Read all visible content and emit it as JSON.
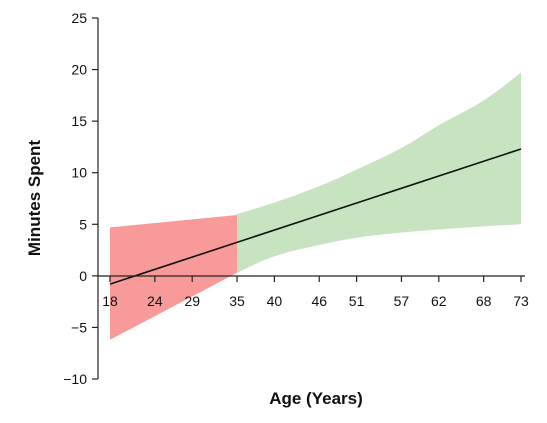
{
  "chart_data": {
    "type": "line",
    "xlabel": "Age (Years)",
    "ylabel": "Minutes Spent",
    "xlim": [
      18,
      73
    ],
    "ylim": [
      -10,
      25
    ],
    "x_ticks": [
      "18",
      "24",
      "29",
      "35",
      "40",
      "46",
      "51",
      "57",
      "62",
      "68",
      "73"
    ],
    "y_ticks": [
      "−10",
      "−5",
      "0",
      "5",
      "10",
      "15",
      "20",
      "25"
    ],
    "x_tick_values": [
      18,
      24,
      29,
      35,
      40,
      46,
      51,
      57,
      62,
      68,
      73
    ],
    "y_tick_values": [
      -10,
      -5,
      0,
      5,
      10,
      15,
      20,
      25
    ],
    "grid": false,
    "regression_line": {
      "x": [
        18,
        73
      ],
      "y": [
        -0.8,
        12.3
      ]
    },
    "bands": [
      {
        "color": "#f99a9a",
        "x": [
          18,
          35
        ],
        "upper": [
          4.7,
          5.9
        ],
        "lower": [
          -6.2,
          0.3
        ]
      },
      {
        "color": "#c7e3c0",
        "x": [
          35,
          40,
          46,
          51,
          57,
          62,
          68,
          73
        ],
        "upper": [
          6.0,
          7.1,
          8.7,
          10.3,
          12.4,
          14.6,
          17.0,
          19.7
        ],
        "lower": [
          0.3,
          1.9,
          3.0,
          3.7,
          4.2,
          4.5,
          4.8,
          5.0
        ]
      }
    ],
    "line_color": "#111111"
  }
}
